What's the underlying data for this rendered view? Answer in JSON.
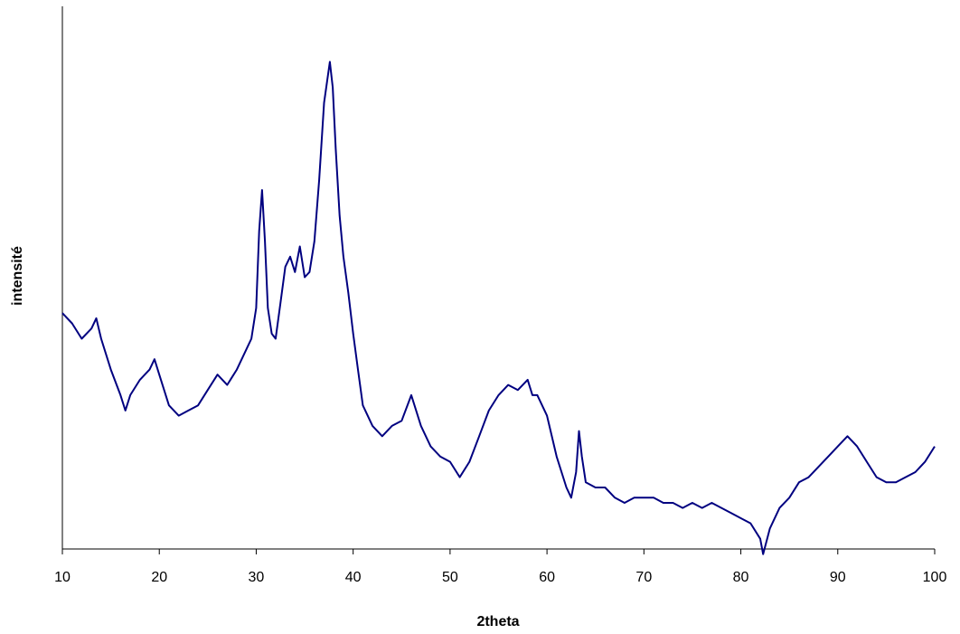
{
  "chart_data": {
    "type": "line",
    "title": "",
    "xlabel": "2theta",
    "ylabel": "intensité",
    "xlim": [
      10,
      100
    ],
    "ylim": [
      0,
      100
    ],
    "xticks": [
      10,
      20,
      30,
      40,
      50,
      60,
      70,
      80,
      90,
      100
    ],
    "ytick_labels_shown": false,
    "grid": false,
    "legend": "none",
    "line_color": "#000080",
    "series": [
      {
        "x": [
          10,
          11,
          12,
          13,
          13.5,
          14,
          15,
          16,
          16.5,
          17,
          18,
          19,
          19.5,
          20,
          21,
          22,
          23,
          24,
          25,
          26,
          27,
          28,
          29,
          29.5,
          30,
          30.3,
          30.6,
          30.9,
          31.2,
          31.6,
          32,
          32.5,
          33,
          33.5,
          34,
          34.5,
          35,
          35.5,
          36,
          36.5,
          37,
          37.3,
          37.6,
          37.9,
          38.2,
          38.6,
          39,
          39.5,
          40,
          40.5,
          41,
          42,
          43,
          44,
          45,
          46,
          47,
          48,
          49,
          50,
          51,
          52,
          53,
          54,
          55,
          56,
          57,
          58,
          58.5,
          59,
          60,
          61,
          62,
          62.5,
          63,
          63.3,
          63.6,
          64,
          65,
          66,
          67,
          68,
          69,
          70,
          71,
          72,
          73,
          74,
          75,
          76,
          77,
          78,
          79,
          80,
          81,
          82,
          82.3,
          83,
          84,
          85,
          86,
          87,
          88,
          89,
          90,
          91,
          91.5,
          92,
          93,
          94,
          95,
          96,
          97,
          98,
          99,
          100
        ],
        "y": [
          46,
          44,
          41,
          43,
          45,
          41,
          35,
          30,
          27,
          30,
          33,
          35,
          37,
          34,
          28,
          26,
          27,
          28,
          31,
          34,
          32,
          35,
          39,
          41,
          47,
          62,
          70,
          60,
          47,
          42,
          41,
          48,
          55,
          57,
          54,
          59,
          53,
          54,
          60,
          72,
          87,
          91,
          95,
          90,
          78,
          65,
          57,
          50,
          42,
          35,
          28,
          24,
          22,
          24,
          25,
          30,
          24,
          20,
          18,
          17,
          14,
          17,
          22,
          27,
          30,
          32,
          31,
          33,
          30,
          30,
          26,
          18,
          12,
          10,
          15,
          23,
          18,
          13,
          12,
          12,
          10,
          9,
          10,
          10,
          10,
          9,
          9,
          8,
          9,
          8,
          9,
          8,
          7,
          6,
          5,
          2,
          -1,
          4,
          8,
          10,
          13,
          14,
          16,
          18,
          20,
          22,
          21,
          20,
          17,
          14,
          13,
          13,
          14,
          15,
          17,
          20
        ]
      }
    ]
  }
}
